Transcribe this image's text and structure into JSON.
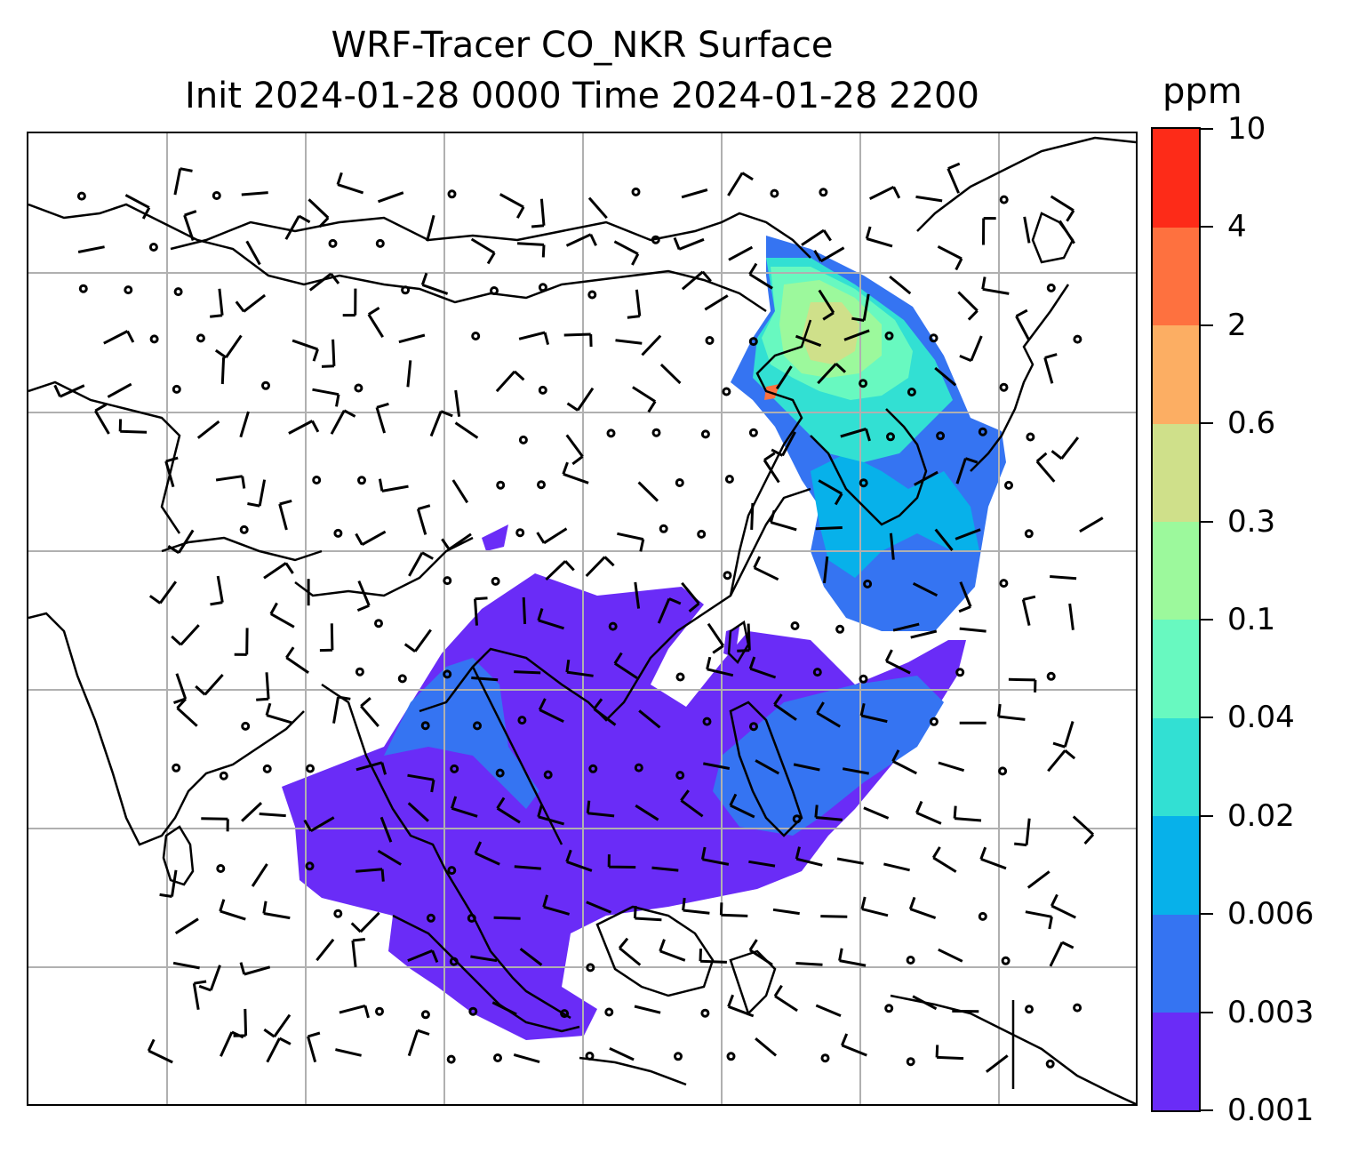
{
  "title": {
    "line1": "WRF-Tracer CO_NKR Surface",
    "line2": "Init 2024-01-28 0000 Time 2024-01-28 2200"
  },
  "colorbar": {
    "unit": "ppm",
    "ticks": [
      "0.001",
      "0.003",
      "0.006",
      "0.02",
      "0.04",
      "0.1",
      "0.3",
      "0.6",
      "2",
      "4",
      "10"
    ],
    "colors": [
      "#6a2cf7",
      "#3574f2",
      "#07b1ea",
      "#32e0d3",
      "#68f9c0",
      "#9cf99c",
      "#cfe08a",
      "#fcae63",
      "#fe713f",
      "#fd2b18"
    ]
  },
  "map": {
    "field": "CO_NKR surface concentration",
    "overlays": [
      "coastlines",
      "country borders",
      "lat/lon gridlines",
      "wind barbs"
    ],
    "gridlines": true
  }
}
